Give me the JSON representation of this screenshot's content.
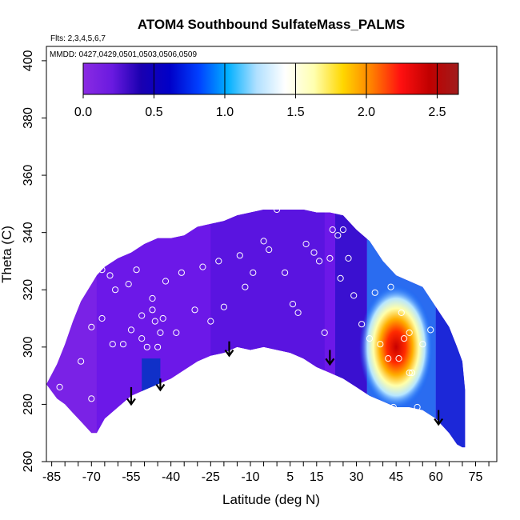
{
  "chart_data": {
    "type": "heatmap",
    "title": "ATOM4 Southbound SulfateMass_PALMS",
    "flights_note": "Flts: 2,3,4,5,6,7",
    "dates_note": "MMDD: 0427,0429,0501,0503,0506,0509",
    "xlabel": "Latitude (deg N)",
    "ylabel": "Theta (C)",
    "xlim": [
      -87,
      83
    ],
    "ylim": [
      260,
      405
    ],
    "x_ticks": [
      -85,
      -70,
      -55,
      -40,
      -25,
      -10,
      5,
      15,
      30,
      45,
      60,
      75
    ],
    "y_ticks": [
      260,
      280,
      300,
      320,
      340,
      360,
      380,
      400
    ],
    "colorbar": {
      "range": [
        0,
        2.65
      ],
      "ticks": [
        0.0,
        0.5,
        1.0,
        1.5,
        2.0,
        2.5
      ],
      "tick_labels": [
        "0.0",
        "0.5",
        "1.0",
        "1.5",
        "2.0",
        "2.5"
      ],
      "colors": [
        "#8a2be2",
        "#6a1ae0",
        "#1a00b0",
        "#0000c8",
        "#0040ff",
        "#00b0ff",
        "#b0e0ff",
        "#ffffff",
        "#ffffb0",
        "#ffd700",
        "#ff8000",
        "#ff1010",
        "#c00000",
        "#a01c1c"
      ]
    },
    "envelope": {
      "lats": [
        -87,
        -83,
        -80,
        -77,
        -74,
        -70,
        -68,
        -65,
        -60,
        -55,
        -50,
        -45,
        -40,
        -35,
        -30,
        -25,
        -20,
        -15,
        -10,
        -5,
        0,
        5,
        10,
        15,
        20,
        25,
        30,
        35,
        40,
        45,
        50,
        55,
        60,
        65,
        68,
        70,
        71
      ],
      "theta_top": [
        287,
        294,
        301,
        309,
        316,
        322,
        325,
        328,
        331,
        333,
        336,
        338,
        338,
        339,
        342,
        343,
        344,
        346,
        347,
        348,
        348,
        348,
        348,
        347,
        347,
        346,
        341,
        337,
        330,
        325,
        323,
        321,
        314,
        307,
        300,
        295,
        285
      ],
      "theta_bot": [
        287,
        282,
        280,
        277,
        274,
        270,
        270,
        275,
        279,
        283,
        285,
        287,
        289,
        292,
        295,
        297,
        298,
        300,
        299,
        300,
        299,
        298,
        296,
        293,
        291,
        289,
        286,
        283,
        281,
        279,
        279,
        278,
        275,
        270,
        266,
        265,
        265
      ]
    },
    "hotspot": {
      "lat": 45,
      "theta": 300,
      "value": 2.6
    },
    "descents": [
      {
        "lat": -55,
        "theta_top": 286,
        "theta_bottom": 280
      },
      {
        "lat": -44,
        "theta_top": 289,
        "theta_bottom": 285
      },
      {
        "lat": -18,
        "theta_top": 302,
        "theta_bottom": 297
      },
      {
        "lat": 20,
        "theta_top": 299,
        "theta_bottom": 294
      },
      {
        "lat": 61,
        "theta_top": 278,
        "theta_bottom": 273
      }
    ],
    "samples": [
      [
        -82,
        286
      ],
      [
        -74,
        295
      ],
      [
        -70,
        282
      ],
      [
        -70,
        307
      ],
      [
        -66,
        327
      ],
      [
        -66,
        310
      ],
      [
        -63,
        325
      ],
      [
        -62,
        301
      ],
      [
        -61,
        320
      ],
      [
        -58,
        301
      ],
      [
        -56,
        322
      ],
      [
        -55,
        306
      ],
      [
        -53,
        327
      ],
      [
        -51,
        311
      ],
      [
        -51,
        303
      ],
      [
        -49,
        300
      ],
      [
        -47,
        317
      ],
      [
        -47,
        313
      ],
      [
        -46,
        309
      ],
      [
        -45,
        300
      ],
      [
        -44,
        305
      ],
      [
        -43,
        310
      ],
      [
        -42,
        323
      ],
      [
        -38,
        305
      ],
      [
        -36,
        326
      ],
      [
        -33,
        287
      ],
      [
        -31,
        313
      ],
      [
        -28,
        328
      ],
      [
        -25,
        309
      ],
      [
        -22,
        330
      ],
      [
        -20,
        314
      ],
      [
        -17,
        296
      ],
      [
        -14,
        332
      ],
      [
        -12,
        321
      ],
      [
        -9,
        326
      ],
      [
        -5,
        337
      ],
      [
        -3,
        334
      ],
      [
        0,
        348
      ],
      [
        3,
        326
      ],
      [
        6,
        315
      ],
      [
        8,
        312
      ],
      [
        11,
        336
      ],
      [
        14,
        333
      ],
      [
        16,
        330
      ],
      [
        18,
        305
      ],
      [
        20,
        331
      ],
      [
        21,
        341
      ],
      [
        23,
        339
      ],
      [
        25,
        341
      ],
      [
        24,
        324
      ],
      [
        27,
        331
      ],
      [
        29,
        318
      ],
      [
        31,
        343
      ],
      [
        32,
        308
      ],
      [
        35,
        303
      ],
      [
        37,
        319
      ],
      [
        39,
        301
      ],
      [
        42,
        296
      ],
      [
        43,
        321
      ],
      [
        44,
        279
      ],
      [
        46,
        296
      ],
      [
        47,
        312
      ],
      [
        48,
        303
      ],
      [
        50,
        291
      ],
      [
        50,
        305
      ],
      [
        51,
        291
      ],
      [
        53,
        279
      ],
      [
        55,
        301
      ],
      [
        55,
        329
      ],
      [
        58,
        306
      ]
    ]
  }
}
